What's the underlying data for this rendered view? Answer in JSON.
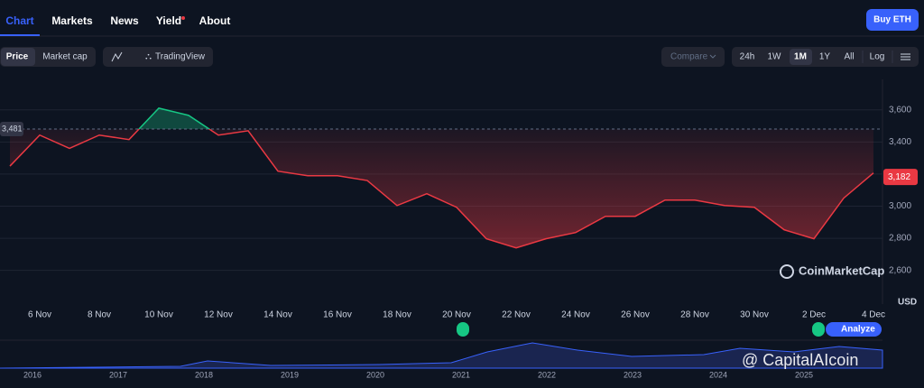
{
  "nav": {
    "tabs": [
      "Chart",
      "Markets",
      "News",
      "Yield",
      "About"
    ],
    "buy_button": "Buy ETH"
  },
  "toolbar": {
    "toggles": [
      "Price",
      "Market cap"
    ],
    "tradingview": "TradingView",
    "compare": "Compare",
    "ranges": [
      "24h",
      "1W",
      "1M",
      "1Y",
      "All"
    ],
    "log": "Log"
  },
  "chart_data": {
    "type": "line",
    "categories": [
      null,
      "6 Nov",
      null,
      "8 Nov",
      null,
      "10 Nov",
      null,
      "12 Nov",
      null,
      "14 Nov",
      null,
      "16 Nov",
      null,
      "18 Nov",
      null,
      "20 Nov",
      null,
      "22 Nov",
      null,
      "24 Nov",
      null,
      "26 Nov",
      null,
      "28 Nov",
      null,
      "30 Nov",
      null,
      "2 Dec",
      null,
      "4 Dec"
    ],
    "values": [
      3250,
      3443,
      3360,
      3443,
      3415,
      3611,
      3566,
      3443,
      3470,
      3218,
      3190,
      3190,
      3160,
      3004,
      3078,
      2993,
      2797,
      2740,
      2797,
      2836,
      2937,
      2937,
      3038,
      3038,
      3004,
      2993,
      2853,
      2797,
      3050,
      3207
    ],
    "color": "#ea3943",
    "above_color": "#16c784",
    "ylim": [
      2390,
      3790
    ],
    "yticks": [
      {
        "value": 2600,
        "label": "2,600"
      },
      {
        "value": 2800,
        "label": "2,800"
      },
      {
        "value": 3000,
        "label": "3,000"
      },
      {
        "value": 3200,
        "label": "3,200"
      },
      {
        "value": 3400,
        "label": "3,400"
      },
      {
        "value": 3600,
        "label": "3,600"
      }
    ],
    "grid": true,
    "reference": {
      "value": 3481,
      "label": "3,481"
    },
    "last_price": {
      "value": 3182,
      "label": "3,182"
    },
    "y_unit": "USD",
    "watermark": "CoinMarketCap"
  },
  "overview": {
    "years": [
      "2016",
      "2017",
      "2018",
      "2019",
      "2020",
      "2021",
      "2022",
      "2023",
      "2024",
      "2025"
    ]
  },
  "analyze": "Analyze",
  "watermark": "@ CapitalAIcoin"
}
